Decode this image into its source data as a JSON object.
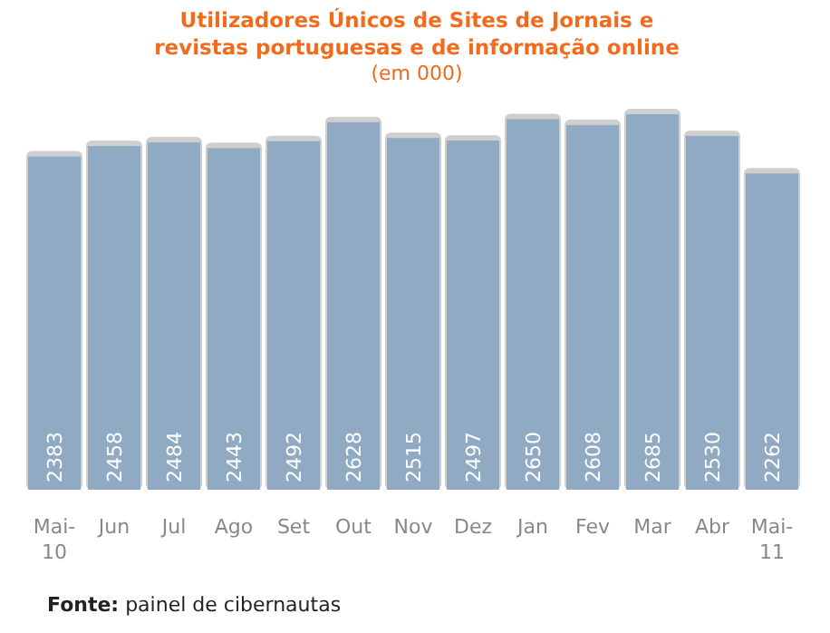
{
  "chart_data": {
    "type": "bar",
    "title": "Utilizadores Únicos de Sites de Jornais e revistas portuguesas e de informação online",
    "subtitle": "(em 000)",
    "categories": [
      "Mai-10",
      "Jun",
      "Jul",
      "Ago",
      "Set",
      "Out",
      "Nov",
      "Dez",
      "Jan",
      "Fev",
      "Mar",
      "Abr",
      "Mai-11"
    ],
    "values": [
      2383,
      2458,
      2484,
      2443,
      2492,
      2628,
      2515,
      2497,
      2650,
      2608,
      2685,
      2530,
      2262
    ],
    "color": "#8faac2",
    "data_labels": true,
    "annotations": [
      "Fonte: painel de cibernautas"
    ]
  }
}
